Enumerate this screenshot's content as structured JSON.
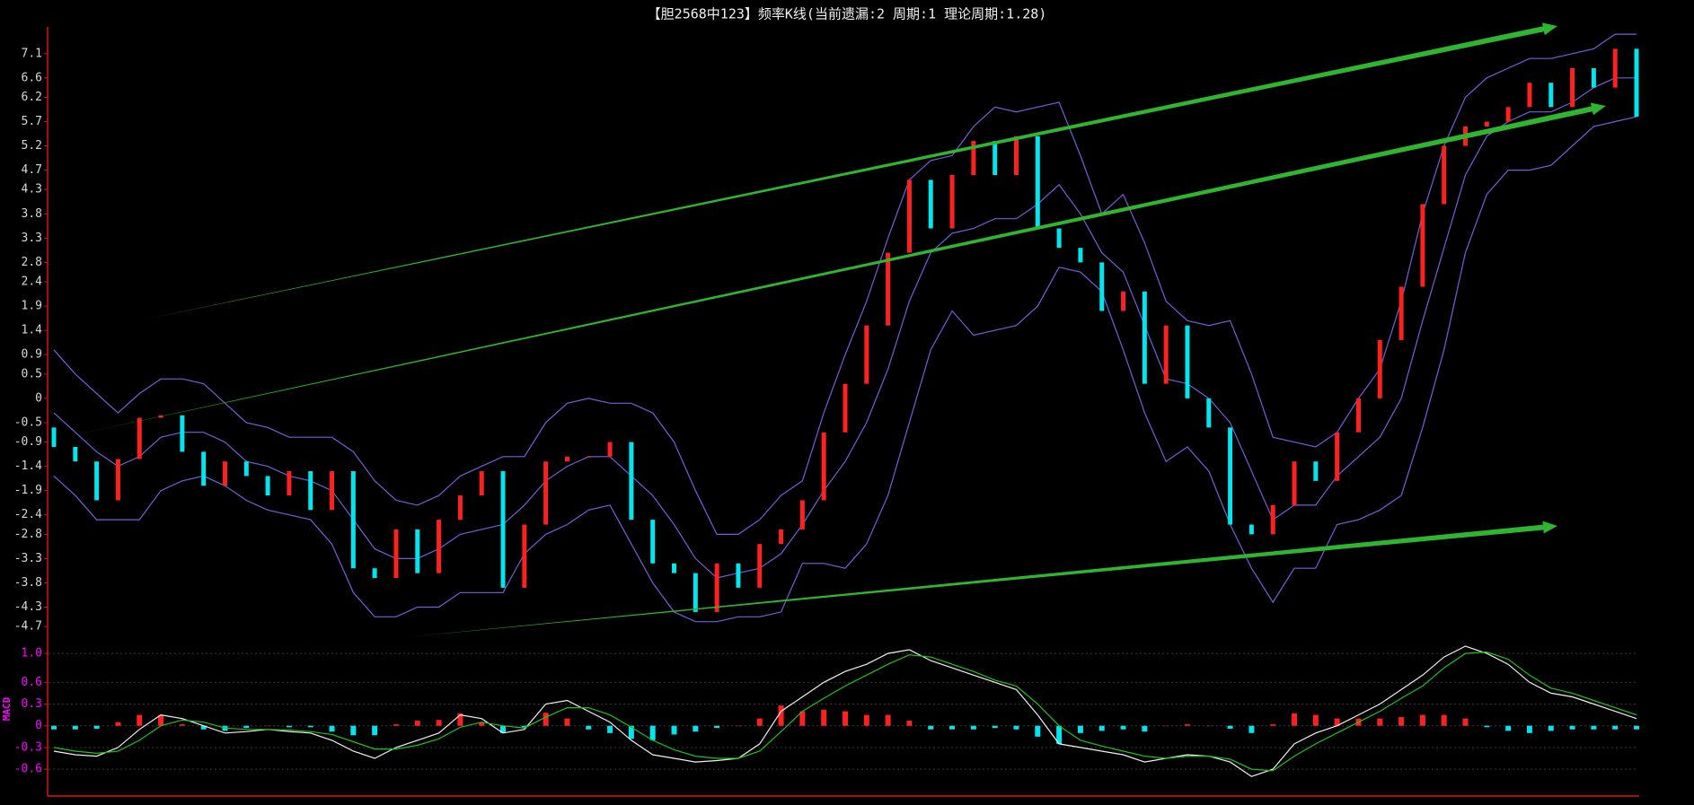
{
  "chart_data": [
    {
      "type": "candlestick",
      "title": "【胆2568中123】频率K线(当前遗漏:2 周期:1 理论周期:1.28)",
      "open": [
        -0.6,
        -1.0,
        -1.3,
        -2.1,
        -1.25,
        -0.4,
        -0.35,
        -1.1,
        -1.8,
        -1.3,
        -1.6,
        -2.0,
        -1.5,
        -2.3,
        -1.5,
        -3.5,
        -3.7,
        -2.7,
        -3.6,
        -2.5,
        -2.0,
        -1.5,
        -3.9,
        -2.6,
        -1.3,
        -1.2,
        -1.2,
        -0.9,
        -2.5,
        -3.4,
        -3.6,
        -4.4,
        -3.4,
        -3.9,
        -3.0,
        -2.7,
        -2.1,
        -0.7,
        0.3,
        1.5,
        3.0,
        4.5,
        3.5,
        4.6,
        5.3,
        4.6,
        5.4,
        3.5,
        3.1,
        2.8,
        1.8,
        2.2,
        0.3,
        1.5,
        0.0,
        -0.6,
        -2.6,
        -2.8,
        -2.2,
        -1.3,
        -1.7,
        -0.7,
        0.0,
        1.2,
        2.3,
        4.0,
        5.2,
        5.6,
        5.7,
        6.0,
        6.5,
        6.0,
        6.8,
        6.4,
        7.2
      ],
      "close": [
        -1.0,
        -1.3,
        -2.1,
        -1.25,
        -0.4,
        -0.35,
        -1.1,
        -1.8,
        -1.3,
        -1.6,
        -2.0,
        -1.5,
        -2.3,
        -1.5,
        -3.5,
        -3.7,
        -2.7,
        -3.6,
        -2.5,
        -2.0,
        -1.5,
        -3.9,
        -2.6,
        -1.3,
        -1.2,
        -1.2,
        -0.9,
        -2.5,
        -3.4,
        -3.6,
        -4.4,
        -3.4,
        -3.9,
        -3.0,
        -2.7,
        -2.1,
        -0.7,
        0.3,
        1.5,
        3.0,
        4.5,
        3.5,
        4.6,
        5.3,
        4.6,
        5.4,
        3.5,
        3.1,
        2.8,
        1.8,
        2.2,
        0.3,
        1.5,
        0.0,
        -0.6,
        -2.6,
        -2.8,
        -2.2,
        -1.3,
        -1.7,
        -0.7,
        0.0,
        1.2,
        2.3,
        4.0,
        5.2,
        5.6,
        5.7,
        6.0,
        6.5,
        6.0,
        6.8,
        6.4,
        7.2,
        5.8
      ],
      "up_color": "#ff2020",
      "down_color": "#00e5ee",
      "series": [
        {
          "color": "#6f62d8",
          "values": [
            1.0,
            0.5,
            0.1,
            -0.3,
            0.1,
            0.4,
            0.4,
            0.3,
            -0.1,
            -0.5,
            -0.6,
            -0.8,
            -0.8,
            -0.8,
            -1.1,
            -1.7,
            -2.1,
            -2.2,
            -2.0,
            -1.6,
            -1.4,
            -1.2,
            -1.2,
            -0.5,
            -0.1,
            0.0,
            -0.1,
            -0.1,
            -0.3,
            -0.9,
            -1.9,
            -2.8,
            -2.8,
            -2.5,
            -2.0,
            -1.7,
            -0.3,
            0.9,
            2.0,
            3.3,
            4.5,
            4.9,
            5.0,
            5.6,
            6.0,
            5.9,
            6.0,
            6.1,
            5.0,
            3.8,
            4.2,
            3.2,
            2.0,
            1.6,
            1.5,
            1.6,
            0.5,
            -0.8,
            -0.9,
            -1.0,
            -0.7,
            0.0,
            0.6,
            2.0,
            3.8,
            5.2,
            6.2,
            6.6,
            6.8,
            7.0,
            7.0,
            7.1,
            7.2,
            7.5,
            7.5
          ]
        },
        {
          "color": "#6f62d8",
          "values": [
            -0.3,
            -0.7,
            -1.1,
            -1.4,
            -1.2,
            -0.8,
            -0.7,
            -0.7,
            -0.9,
            -1.3,
            -1.4,
            -1.6,
            -1.7,
            -1.9,
            -2.5,
            -3.1,
            -3.3,
            -3.3,
            -3.1,
            -2.8,
            -2.7,
            -2.6,
            -2.2,
            -1.7,
            -1.4,
            -1.2,
            -1.2,
            -1.6,
            -2.0,
            -2.6,
            -3.3,
            -3.7,
            -3.6,
            -3.5,
            -3.2,
            -2.6,
            -1.9,
            -1.3,
            -0.5,
            0.6,
            2.0,
            3.0,
            3.4,
            3.5,
            3.7,
            3.7,
            4.0,
            4.4,
            3.8,
            3.0,
            2.6,
            1.5,
            0.4,
            0.3,
            0.0,
            -0.5,
            -1.5,
            -2.5,
            -2.2,
            -2.2,
            -1.6,
            -1.2,
            -0.8,
            0.0,
            1.6,
            3.1,
            4.6,
            5.4,
            5.7,
            5.9,
            5.9,
            6.1,
            6.4,
            6.6,
            6.6
          ]
        },
        {
          "color": "#6f62d8",
          "values": [
            -1.6,
            -2.0,
            -2.5,
            -2.5,
            -2.5,
            -1.9,
            -1.7,
            -1.6,
            -1.8,
            -2.1,
            -2.3,
            -2.4,
            -2.5,
            -3.0,
            -4.0,
            -4.5,
            -4.5,
            -4.3,
            -4.3,
            -4.0,
            -4.0,
            -4.0,
            -3.2,
            -2.8,
            -2.6,
            -2.3,
            -2.2,
            -3.0,
            -3.8,
            -4.4,
            -4.6,
            -4.6,
            -4.5,
            -4.5,
            -4.4,
            -3.4,
            -3.4,
            -3.5,
            -3.0,
            -2.0,
            -0.5,
            1.0,
            1.8,
            1.3,
            1.4,
            1.5,
            1.9,
            2.7,
            2.6,
            2.2,
            1.0,
            -0.3,
            -1.3,
            -1.0,
            -1.5,
            -2.6,
            -3.5,
            -4.2,
            -3.5,
            -3.5,
            -2.6,
            -2.5,
            -2.3,
            -2.0,
            -0.6,
            1.0,
            3.0,
            4.2,
            4.7,
            4.7,
            4.8,
            5.2,
            5.6,
            5.7,
            5.8
          ]
        }
      ],
      "ylim": [
        -5.03,
        7.65
      ],
      "yticks": [
        7.1,
        6.6,
        6.2,
        5.7,
        5.2,
        4.7,
        4.3,
        3.8,
        3.3,
        2.8,
        2.4,
        1.9,
        1.4,
        0.9,
        0.5,
        0,
        -0.5,
        -0.9,
        -1.4,
        -1.9,
        -2.4,
        -2.8,
        -3.3,
        -3.8,
        -4.3,
        -4.7
      ]
    },
    {
      "type": "macd",
      "y_label": "MACD",
      "bars": {
        "up_color": "#ff2020",
        "down_color": "#00e5ee",
        "values": [
          -0.05,
          -0.05,
          -0.04,
          0.05,
          0.15,
          0.15,
          0.02,
          -0.05,
          -0.07,
          -0.03,
          0,
          -0.02,
          -0.02,
          -0.08,
          -0.13,
          -0.13,
          0.02,
          0.07,
          0.08,
          0.17,
          0.05,
          -0.1,
          -0.02,
          0.18,
          0.1,
          -0.05,
          -0.1,
          -0.18,
          -0.2,
          -0.12,
          -0.08,
          -0.03,
          0,
          0.1,
          0.28,
          0.2,
          0.22,
          0.2,
          0.15,
          0.15,
          0.07,
          -0.05,
          -0.05,
          -0.05,
          -0.03,
          -0.05,
          -0.15,
          -0.25,
          -0.1,
          -0.07,
          -0.05,
          -0.08,
          0,
          0.02,
          0,
          -0.04,
          -0.1,
          0.02,
          0.17,
          0.15,
          0.1,
          0.1,
          0.1,
          0.12,
          0.15,
          0.15,
          0.1,
          -0.02,
          -0.07,
          -0.1,
          -0.07,
          -0.05,
          -0.05,
          -0.05,
          -0.05
        ]
      },
      "series": [
        {
          "color": "#f0f0f0",
          "values": [
            -0.35,
            -0.4,
            -0.42,
            -0.3,
            -0.05,
            0.15,
            0.1,
            0.0,
            -0.1,
            -0.08,
            -0.05,
            -0.08,
            -0.1,
            -0.2,
            -0.35,
            -0.45,
            -0.3,
            -0.2,
            -0.1,
            0.15,
            0.1,
            -0.1,
            -0.05,
            0.3,
            0.35,
            0.2,
            0.05,
            -0.2,
            -0.4,
            -0.45,
            -0.5,
            -0.48,
            -0.45,
            -0.25,
            0.2,
            0.4,
            0.6,
            0.75,
            0.85,
            1.0,
            1.05,
            0.9,
            0.8,
            0.7,
            0.6,
            0.5,
            0.15,
            -0.25,
            -0.3,
            -0.35,
            -0.4,
            -0.5,
            -0.45,
            -0.4,
            -0.42,
            -0.5,
            -0.7,
            -0.6,
            -0.25,
            -0.1,
            0.0,
            0.15,
            0.3,
            0.5,
            0.7,
            0.95,
            1.1,
            1.0,
            0.85,
            0.6,
            0.45,
            0.4,
            0.3,
            0.2,
            0.1
          ]
        },
        {
          "color": "#1fc01f",
          "values": [
            -0.3,
            -0.35,
            -0.38,
            -0.35,
            -0.2,
            0.0,
            0.08,
            0.05,
            -0.03,
            -0.05,
            -0.05,
            -0.06,
            -0.08,
            -0.12,
            -0.22,
            -0.32,
            -0.32,
            -0.27,
            -0.18,
            -0.02,
            0.05,
            0.0,
            -0.03,
            0.12,
            0.25,
            0.25,
            0.15,
            -0.02,
            -0.2,
            -0.33,
            -0.42,
            -0.45,
            -0.45,
            -0.35,
            -0.08,
            0.2,
            0.38,
            0.55,
            0.7,
            0.85,
            0.98,
            0.95,
            0.85,
            0.75,
            0.63,
            0.55,
            0.3,
            0.0,
            -0.2,
            -0.28,
            -0.35,
            -0.42,
            -0.45,
            -0.42,
            -0.42,
            -0.46,
            -0.6,
            -0.62,
            -0.42,
            -0.25,
            -0.1,
            0.05,
            0.2,
            0.38,
            0.55,
            0.8,
            1.0,
            1.02,
            0.92,
            0.7,
            0.52,
            0.45,
            0.35,
            0.25,
            0.15
          ]
        }
      ],
      "ylim": [
        -0.97,
        1.1
      ],
      "yticks": [
        {
          "value": 1,
          "label": "1.0"
        },
        0.6,
        0.3,
        0,
        -0.3,
        -0.6
      ],
      "grid": true
    }
  ]
}
